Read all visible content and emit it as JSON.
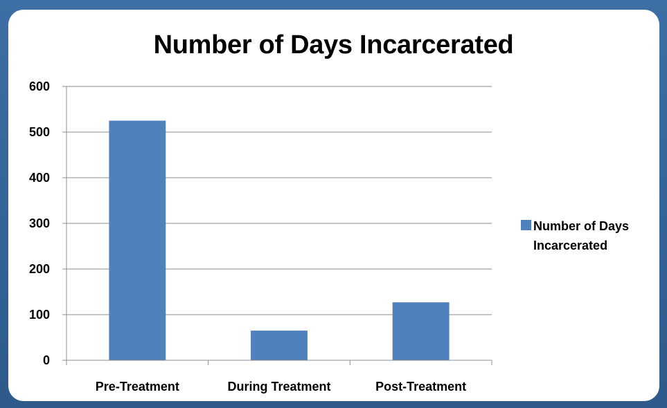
{
  "chart_data": {
    "type": "bar",
    "title": "Number of Days Incarcerated",
    "categories": [
      "Pre-Treatment",
      "During Treatment",
      "Post-Treatment"
    ],
    "series": [
      {
        "name": "Number of Days Incarcerated",
        "values": [
          525,
          65,
          127
        ]
      }
    ],
    "ylim": [
      0,
      600
    ],
    "yticks": [
      0,
      100,
      200,
      300,
      400,
      500,
      600
    ],
    "grid": true,
    "legend": "right",
    "colors": {
      "bar": "#4f81bd",
      "grid": "#8c8c8c",
      "axis": "#8c8c8c"
    },
    "legend_lines": [
      "Number of Days",
      "Incarcerated"
    ]
  }
}
